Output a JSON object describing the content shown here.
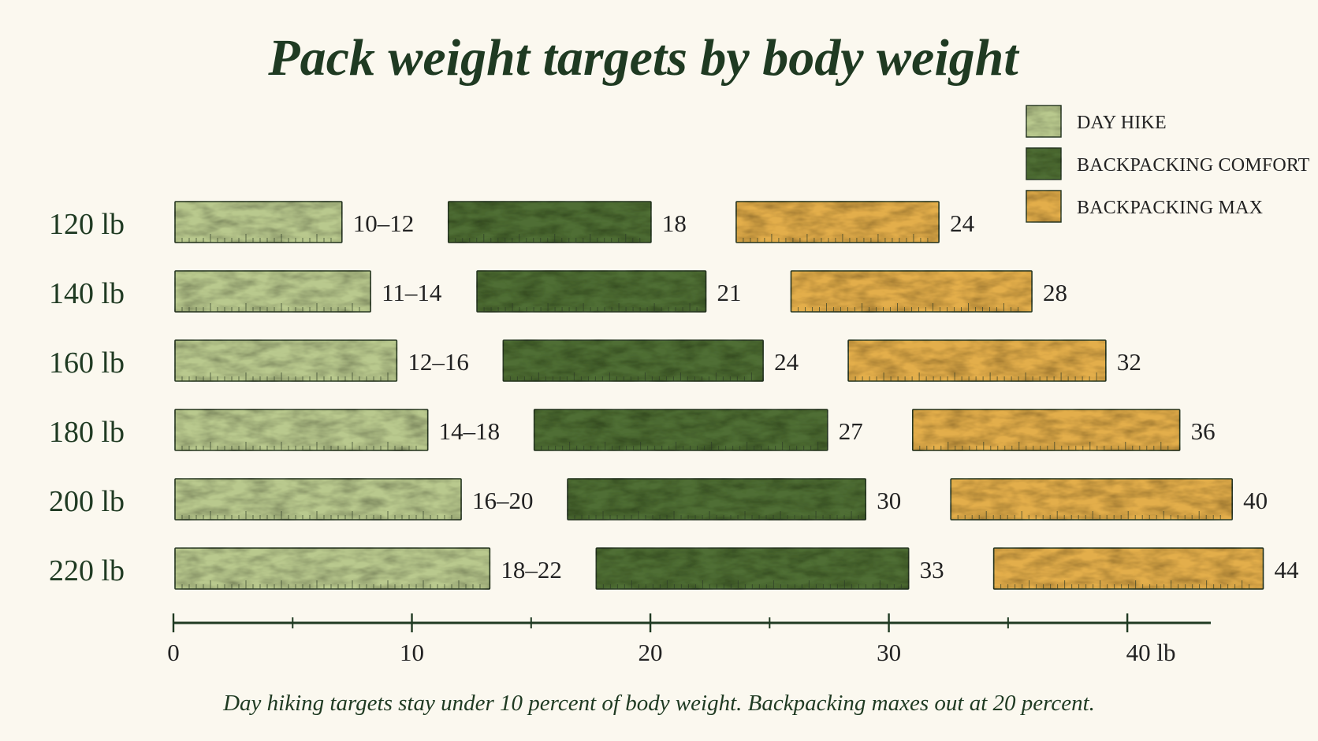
{
  "chart_data": {
    "type": "bar",
    "title": "Pack weight targets by body weight",
    "caption": "Day hiking targets stay under 10 percent of body weight. Backpacking maxes out at 20 percent.",
    "categories": [
      "120 lb",
      "140 lb",
      "160 lb",
      "180 lb",
      "200 lb",
      "220 lb"
    ],
    "series": [
      {
        "name": "DAY HIKE",
        "color": "#b9c98e",
        "values": [
          7,
          8.2,
          9.3,
          10.6,
          12,
          13.2
        ],
        "labels": [
          "10–12",
          "11–14",
          "12–16",
          "14–18",
          "16–20",
          "18–22"
        ]
      },
      {
        "name": "BACKPACKING COMFORT",
        "color": "#4f6e34",
        "values": [
          8.5,
          9.6,
          10.9,
          12.3,
          12.5,
          13.1
        ],
        "labels": [
          "18",
          "21",
          "24",
          "27",
          "30",
          "33"
        ]
      },
      {
        "name": "BACKPACKING MAX",
        "color": "#e3ae4c",
        "values": [
          8.5,
          10.1,
          10.8,
          11.2,
          11.8,
          11.3
        ],
        "labels": [
          "24",
          "28",
          "32",
          "36",
          "40",
          "44"
        ]
      }
    ],
    "xaxis": {
      "ticks": [
        0,
        10,
        20,
        30,
        40
      ],
      "tick_labels": [
        "0",
        "10",
        "20",
        "30",
        "40 lb"
      ],
      "minor_ticks": [
        5,
        15,
        25,
        35
      ],
      "range": [
        0,
        43.5
      ]
    },
    "legend_position": "top-right",
    "grid": false
  },
  "colors": {
    "ink": "#1f3a22",
    "background": "#fbf8ef",
    "outline": "#2c3a26"
  }
}
